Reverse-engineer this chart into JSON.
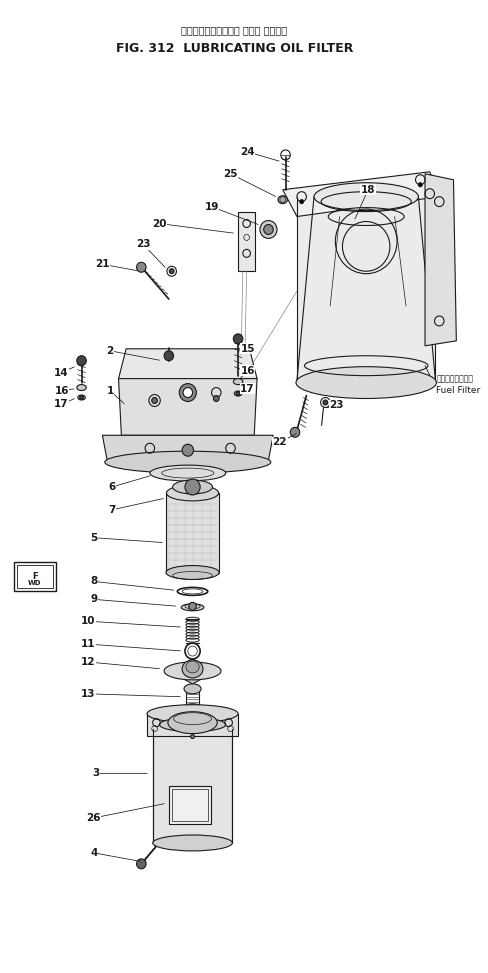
{
  "title_japanese": "ルーブリケーティング オイル フィルタ",
  "title_english": "FIG. 312  LUBRICATING OIL FILTER",
  "bg_color": "#ffffff",
  "line_color": "#1a1a1a",
  "fuel_filter_jp": "ジェエルフィルタ",
  "fuel_filter_en": "Fuel Filter"
}
